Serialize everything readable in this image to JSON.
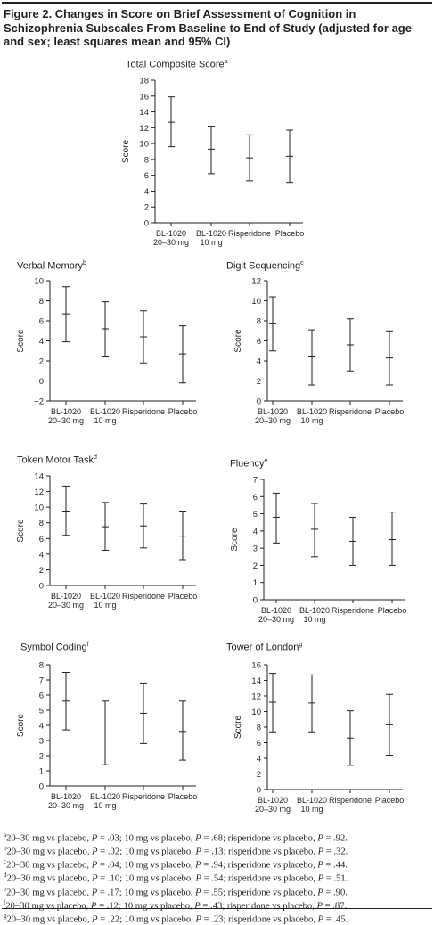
{
  "figure_title": "Figure 2. Changes in Score on Brief Assessment of Cognition in Schizophrenia Subscales From Baseline to End of Study (adjusted for age and sex; least squares mean and 95% CI)",
  "chart_data": [
    {
      "type": "errorbar",
      "title": "Total Composite Score",
      "footnote_mark": "a",
      "ylabel": "Score",
      "ylim": [
        0,
        18
      ],
      "yticks": [
        0,
        2,
        4,
        6,
        8,
        10,
        12,
        14,
        16,
        18
      ],
      "categories": [
        [
          "BL-1020",
          "20–30 mg"
        ],
        [
          "BL-1020",
          "10 mg"
        ],
        [
          "Risperidone"
        ],
        [
          "Placebo"
        ]
      ],
      "mean": [
        12.7,
        9.3,
        8.2,
        8.4
      ],
      "ci_low": [
        9.6,
        6.2,
        5.3,
        5.1
      ],
      "ci_high": [
        15.9,
        12.2,
        11.1,
        11.7
      ]
    },
    {
      "type": "errorbar",
      "title": "Verbal Memory",
      "footnote_mark": "b",
      "ylabel": "Score",
      "ylim": [
        -2,
        10
      ],
      "yticks": [
        -2,
        0,
        2,
        4,
        6,
        8,
        10
      ],
      "categories": [
        [
          "BL-1020",
          "20–30 mg"
        ],
        [
          "BL-1020",
          "10 mg"
        ],
        [
          "Risperidone"
        ],
        [
          "Placebo"
        ]
      ],
      "mean": [
        6.7,
        5.2,
        4.4,
        2.7
      ],
      "ci_low": [
        3.9,
        2.4,
        1.8,
        -0.2
      ],
      "ci_high": [
        9.4,
        7.9,
        7.0,
        5.5
      ]
    },
    {
      "type": "errorbar",
      "title": "Digit Sequencing",
      "footnote_mark": "c",
      "ylabel": "Score",
      "ylim": [
        0,
        12
      ],
      "yticks": [
        0,
        2,
        4,
        6,
        8,
        10,
        12
      ],
      "categories": [
        [
          "BL-1020",
          "20–30 mg"
        ],
        [
          "BL-1020",
          "10 mg"
        ],
        [
          "Risperidone"
        ],
        [
          "Placebo"
        ]
      ],
      "mean": [
        7.7,
        4.4,
        5.6,
        4.3
      ],
      "ci_low": [
        5.0,
        1.6,
        3.0,
        1.6
      ],
      "ci_high": [
        10.4,
        7.1,
        8.2,
        7.0
      ]
    },
    {
      "type": "errorbar",
      "title": "Token Motor Task",
      "footnote_mark": "d",
      "ylabel": "Score",
      "ylim": [
        0,
        14
      ],
      "yticks": [
        0,
        2,
        4,
        6,
        8,
        10,
        12,
        14
      ],
      "categories": [
        [
          "BL-1020",
          "20–30 mg"
        ],
        [
          "BL-1020",
          "10 mg"
        ],
        [
          "Risperidone"
        ],
        [
          "Placebo"
        ]
      ],
      "mean": [
        9.5,
        7.5,
        7.6,
        6.3
      ],
      "ci_low": [
        6.4,
        4.5,
        4.8,
        3.3
      ],
      "ci_high": [
        12.7,
        10.6,
        10.4,
        9.5
      ]
    },
    {
      "type": "errorbar",
      "title": "Fluency",
      "footnote_mark": "e",
      "ylabel": "Score",
      "ylim": [
        0,
        7
      ],
      "yticks": [
        0,
        1,
        2,
        3,
        4,
        5,
        6,
        7
      ],
      "categories": [
        [
          "BL-1020",
          "20–30 mg"
        ],
        [
          "BL-1020",
          "10 mg"
        ],
        [
          "Risperidone"
        ],
        [
          "Placebo"
        ]
      ],
      "mean": [
        4.8,
        4.1,
        3.4,
        3.5
      ],
      "ci_low": [
        3.3,
        2.5,
        2.0,
        2.0
      ],
      "ci_high": [
        6.2,
        5.6,
        4.8,
        5.1
      ]
    },
    {
      "type": "errorbar",
      "title": "Symbol Coding",
      "footnote_mark": "f",
      "ylabel": "Score",
      "ylim": [
        0,
        8
      ],
      "yticks": [
        0,
        1,
        2,
        3,
        4,
        5,
        6,
        7,
        8
      ],
      "categories": [
        [
          "BL-1020",
          "20–30 mg"
        ],
        [
          "BL-1020",
          "10 mg"
        ],
        [
          "Risperidone"
        ],
        [
          "Placebo"
        ]
      ],
      "mean": [
        5.6,
        3.5,
        4.8,
        3.6
      ],
      "ci_low": [
        3.7,
        1.4,
        2.8,
        1.7
      ],
      "ci_high": [
        7.5,
        5.6,
        6.8,
        5.6
      ]
    },
    {
      "type": "errorbar",
      "title": "Tower of London",
      "footnote_mark": "g",
      "ylabel": "Score",
      "ylim": [
        0,
        16
      ],
      "yticks": [
        0,
        2,
        4,
        6,
        8,
        10,
        12,
        14,
        16
      ],
      "categories": [
        [
          "BL-1020",
          "20–30 mg"
        ],
        [
          "BL-1020",
          "10 mg"
        ],
        [
          "Risperidone"
        ],
        [
          "Placebo"
        ]
      ],
      "mean": [
        11.2,
        11.1,
        6.6,
        8.3
      ],
      "ci_low": [
        7.4,
        7.4,
        3.1,
        4.4
      ],
      "ci_high": [
        14.9,
        14.7,
        10.1,
        12.2
      ]
    }
  ],
  "footnotes": [
    {
      "mark": "a",
      "p": [
        ".03",
        ".68",
        ".92"
      ]
    },
    {
      "mark": "b",
      "p": [
        ".02",
        ".13",
        ".32"
      ]
    },
    {
      "mark": "c",
      "p": [
        ".04",
        ".94",
        ".44"
      ]
    },
    {
      "mark": "d",
      "p": [
        ".10",
        ".54",
        ".51"
      ]
    },
    {
      "mark": "e",
      "p": [
        ".17",
        ".55",
        ".90"
      ]
    },
    {
      "mark": "f",
      "p": [
        ".12",
        ".43",
        ".87"
      ]
    },
    {
      "mark": "g",
      "p": [
        ".22",
        ".23",
        ".45"
      ]
    }
  ],
  "footnote_text": {
    "c1": "20–30 mg vs placebo, ",
    "c2": "; 10 mg vs placebo, ",
    "c3": "; risperidone vs placebo, ",
    "p": "P",
    "eq": " = ",
    "end": "."
  }
}
